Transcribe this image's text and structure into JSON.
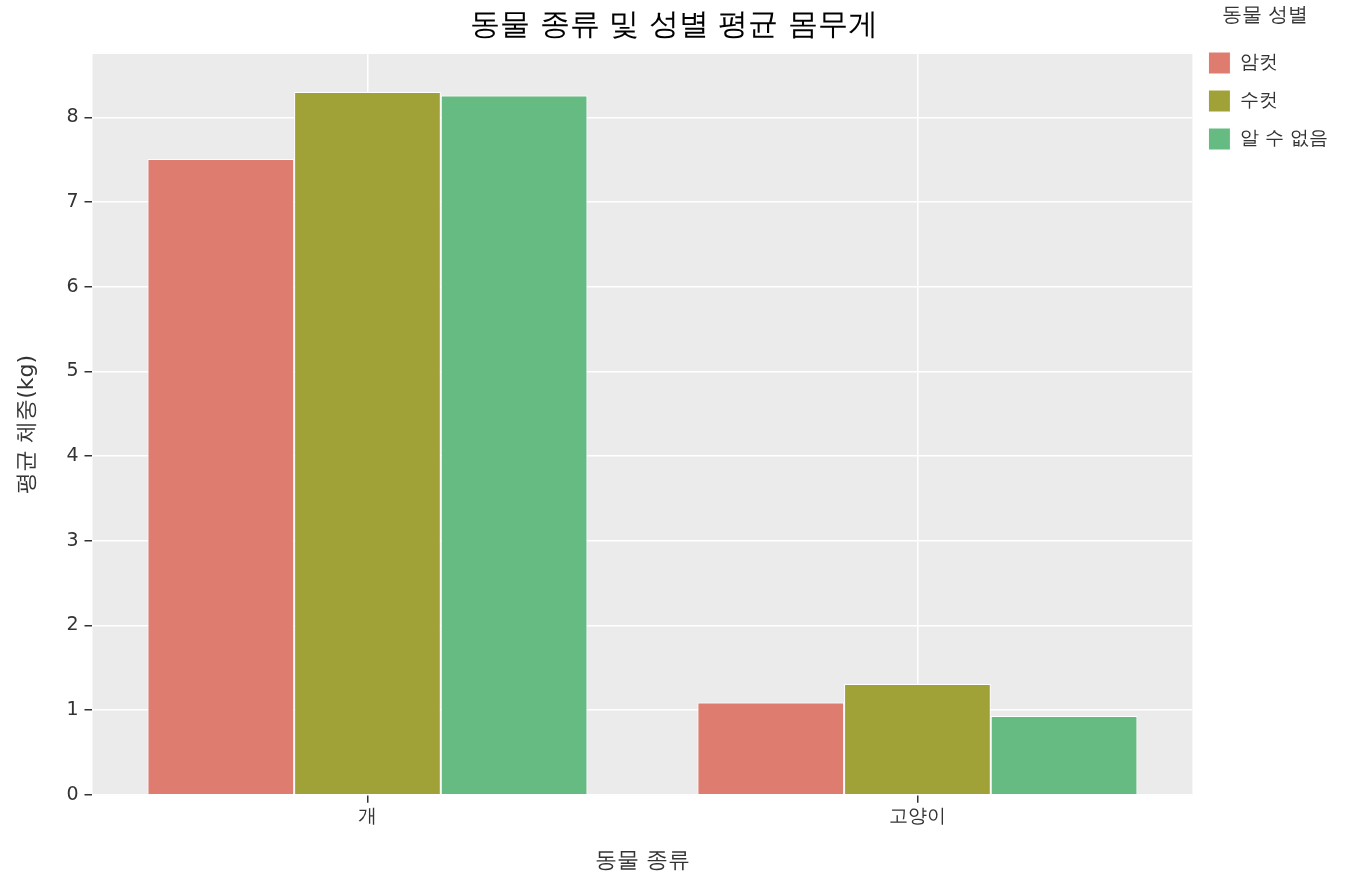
{
  "chart_data": {
    "type": "bar",
    "title": "동물 종류 및 성별 평균 몸무게",
    "xlabel": "동물 종류",
    "ylabel": "평균 체중(kg)",
    "legend_title": "동물 성별",
    "categories": [
      "개",
      "고양이"
    ],
    "series": [
      {
        "name": "암컷",
        "color": "#de7c70",
        "values": [
          7.51,
          1.09
        ]
      },
      {
        "name": "수컷",
        "color": "#a0a238",
        "values": [
          8.3,
          1.31
        ]
      },
      {
        "name": "알 수 없음",
        "color": "#66bb83",
        "values": [
          8.26,
          0.93
        ]
      }
    ],
    "ylim": [
      0,
      8.75
    ],
    "yticks": [
      0,
      1,
      2,
      3,
      4,
      5,
      6,
      7,
      8
    ],
    "grid": true,
    "legend": "top right"
  }
}
